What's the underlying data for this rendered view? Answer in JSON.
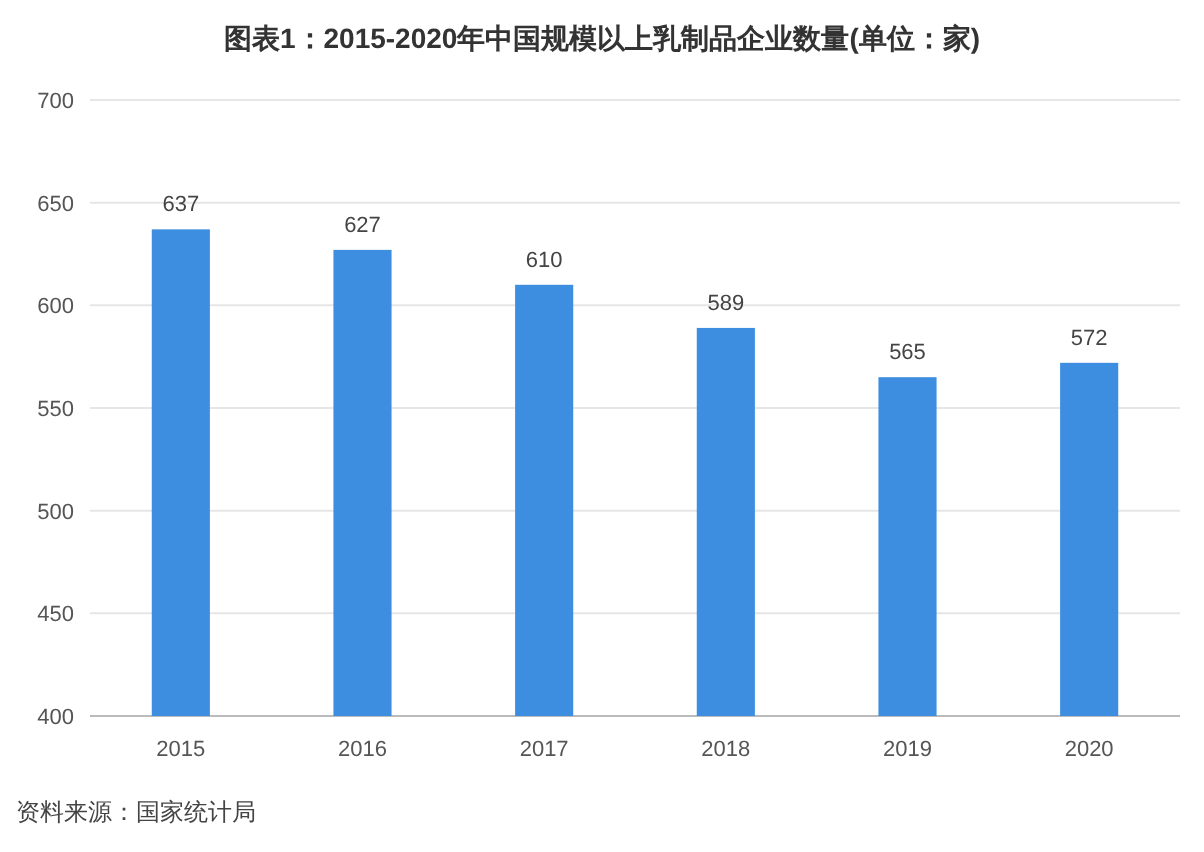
{
  "chart_data": {
    "type": "bar",
    "title": "图表1：2015-2020年中国规模以上乳制品企业数量(单位：家)",
    "categories": [
      "2015",
      "2016",
      "2017",
      "2018",
      "2019",
      "2020"
    ],
    "values": [
      637,
      627,
      610,
      589,
      565,
      572
    ],
    "color": "#3d8ee0",
    "ylim": [
      400,
      700
    ],
    "yticks": [
      400,
      450,
      500,
      550,
      600,
      650,
      700
    ],
    "grid": "y",
    "data_labels": true,
    "annotations": [
      "资料来源：国家统计局"
    ]
  }
}
